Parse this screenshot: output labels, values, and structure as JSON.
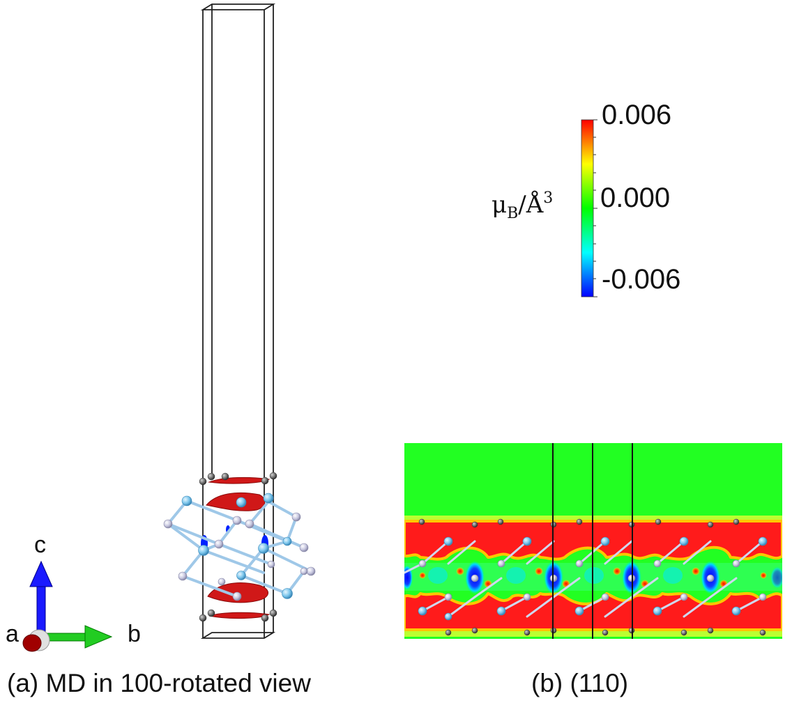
{
  "colorbar": {
    "max_label": "0.006",
    "mid_label": "0.000",
    "min_label": "-0.006",
    "unit_label": "μB/Å³",
    "unit_main": "μ",
    "unit_sub": "B",
    "unit_rest": "/Å",
    "unit_sup": "3",
    "colors": [
      "#ff0000",
      "#ffff00",
      "#00ff00",
      "#00ffff",
      "#0000ff"
    ]
  },
  "axes": {
    "c_label": "c",
    "a_label": "a",
    "b_label": "b",
    "c_color": "#0000ff",
    "b_color": "#00c000",
    "a_color": "#a00000"
  },
  "captions": {
    "a": "(a) MD in 100-rotated view",
    "b": "(b) (110)"
  },
  "colors": {
    "background_field": "#22ff22",
    "spin_up": "#ff1b1b",
    "spin_down": "#0022ff",
    "isosurface": "#d01818",
    "atom_blue": "#7cc6ec",
    "atom_gray": "#c8c8e0",
    "atom_dark": "#707070"
  }
}
